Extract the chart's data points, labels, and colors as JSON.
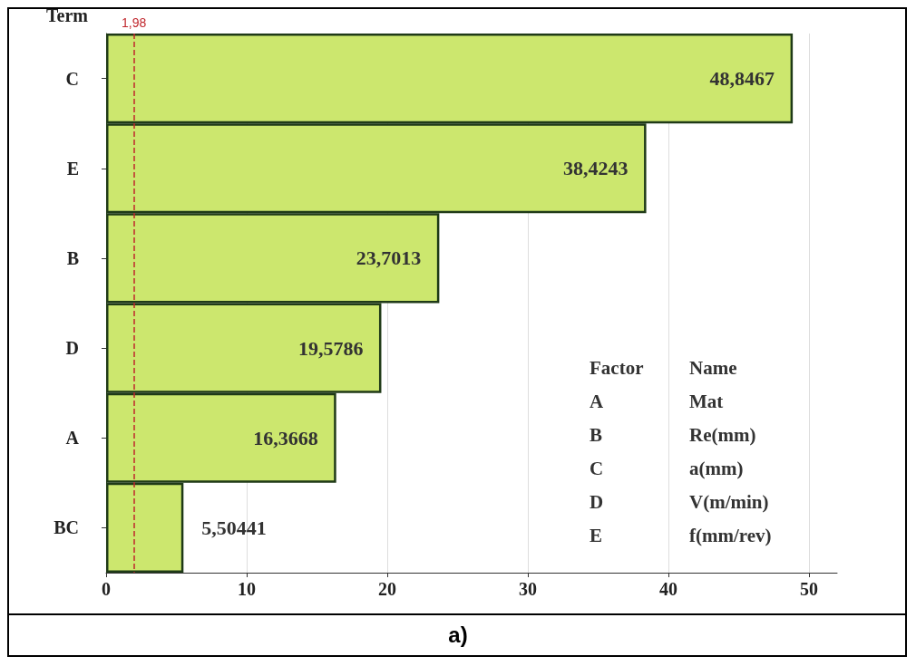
{
  "chart_data": {
    "type": "bar",
    "orientation": "horizontal",
    "ylabel": "Term",
    "categories": [
      "C",
      "E",
      "B",
      "D",
      "A",
      "BC"
    ],
    "values": [
      48.8467,
      38.4243,
      23.7013,
      19.5786,
      16.3668,
      5.50441
    ],
    "value_labels": [
      "48,8467",
      "38,4243",
      "23,7013",
      "19,5786",
      "16,3668",
      "5,50441"
    ],
    "color": "#cce76e",
    "xlim": [
      0,
      52
    ],
    "xticks": [
      0,
      10,
      20,
      30,
      40,
      50
    ],
    "grid": "x",
    "ref_lines": [
      {
        "axis": "x",
        "value": 1.98,
        "label": "1,98",
        "color": "#c0272d",
        "line_style": "dashed"
      }
    ],
    "annotations": [
      "Factor",
      "Name",
      "A",
      "Mat",
      "B",
      "Re(mm)",
      "C",
      "a(mm)",
      "D",
      "V(m/min)",
      "E",
      "f(mm/rev)",
      "a)"
    ]
  }
}
